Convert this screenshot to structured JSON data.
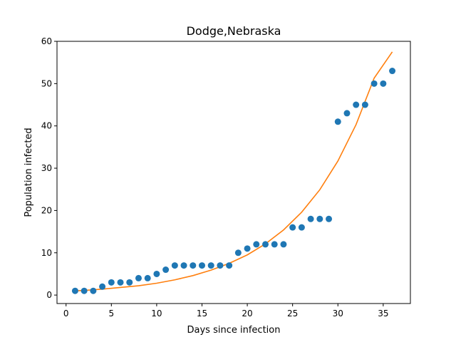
{
  "chart_data": {
    "type": "scatter",
    "title": "Dodge,Nebraska",
    "xlabel": "Days since infection",
    "ylabel": "Population infected",
    "xlim": [
      -1,
      38
    ],
    "ylim": [
      -2,
      60
    ],
    "xticks": [
      0,
      5,
      10,
      15,
      20,
      25,
      30,
      35
    ],
    "yticks": [
      0,
      10,
      20,
      30,
      40,
      50,
      60
    ],
    "grid": false,
    "legend": "none",
    "series": [
      {
        "kind": "scatter",
        "color": "#1f77b4",
        "x": [
          1,
          2,
          3,
          4,
          5,
          6,
          7,
          8,
          9,
          10,
          11,
          12,
          13,
          14,
          15,
          16,
          17,
          18,
          19,
          20,
          21,
          22,
          23,
          24,
          25,
          26,
          27,
          28,
          29,
          30,
          31,
          32,
          33,
          34,
          35,
          36
        ],
        "y": [
          1,
          1,
          1,
          2,
          3,
          3,
          3,
          4,
          4,
          5,
          6,
          7,
          7,
          7,
          7,
          7,
          7,
          7,
          10,
          11,
          12,
          12,
          12,
          12,
          16,
          16,
          18,
          18,
          18,
          41,
          43,
          45,
          45,
          50,
          50,
          53
        ]
      },
      {
        "kind": "line",
        "color": "#ff7f0e",
        "x": [
          1,
          2,
          4,
          6,
          8,
          10,
          12,
          14,
          16,
          18,
          20,
          22,
          24,
          26,
          28,
          30,
          32,
          34,
          36
        ],
        "y": [
          1.0,
          1.1,
          1.4,
          1.8,
          2.2,
          2.8,
          3.6,
          4.6,
          5.9,
          7.5,
          9.5,
          12.1,
          15.4,
          19.6,
          24.9,
          31.7,
          40.3,
          51.3,
          57.5
        ]
      }
    ]
  }
}
